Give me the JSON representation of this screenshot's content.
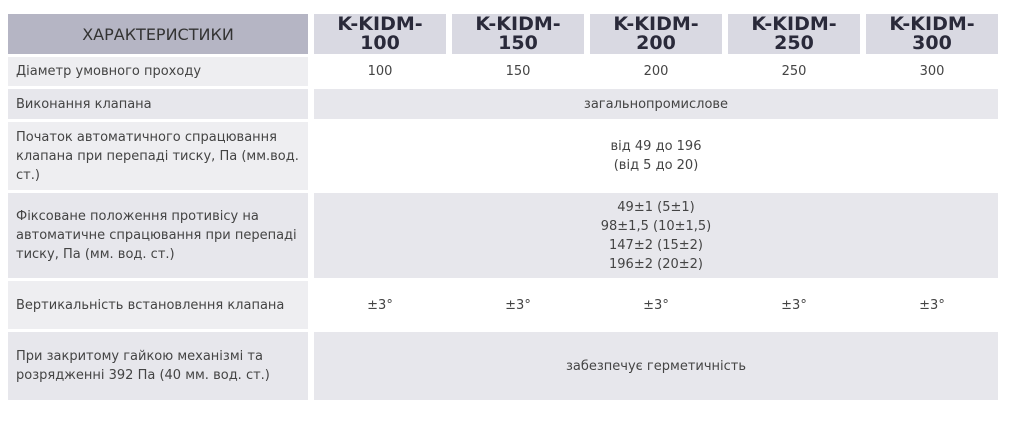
{
  "table": {
    "header": [
      "ХАРАКТЕРИСТИКИ",
      "K-KIDM-100",
      "K-KIDM-150",
      "K-KIDM-200",
      "K-KIDM-250",
      "K-KIDM-300"
    ],
    "rows": [
      {
        "label": "Діаметр умовного проходу",
        "cells": [
          [
            "100"
          ],
          [
            "150"
          ],
          [
            "200"
          ],
          [
            "250"
          ],
          [
            "300"
          ]
        ]
      },
      {
        "label": "Виконання клапана",
        "cells": [
          [
            "загальнопромислове"
          ]
        ]
      },
      {
        "label": "Початок автоматичного спрацювання клапана при перепаді тиску, Па (мм.вод. ст.)",
        "cells": [
          [
            "від 49 до 196",
            "(від 5 до 20)"
          ]
        ]
      },
      {
        "label": "Фіксоване положення противісу на автоматичне спрацювання при перепаді тиску, Па (мм. вод. ст.)",
        "cells": [
          [
            "49±1 (5±1)",
            "98±1,5 (10±1,5)",
            "147±2 (15±2)",
            "196±2 (20±2)"
          ]
        ]
      },
      {
        "label": "Вертикальність встановлення клапана",
        "cells": [
          [
            "±3°"
          ],
          [
            "±3°"
          ],
          [
            "±3°"
          ],
          [
            "±3°"
          ],
          [
            "±3°"
          ]
        ]
      },
      {
        "label": "При закритому гайкою механізмі та розрядженні 392 Па (40 мм. вод. ст.)",
        "cells": [
          [
            "забезпечує герметичність"
          ]
        ]
      }
    ]
  }
}
